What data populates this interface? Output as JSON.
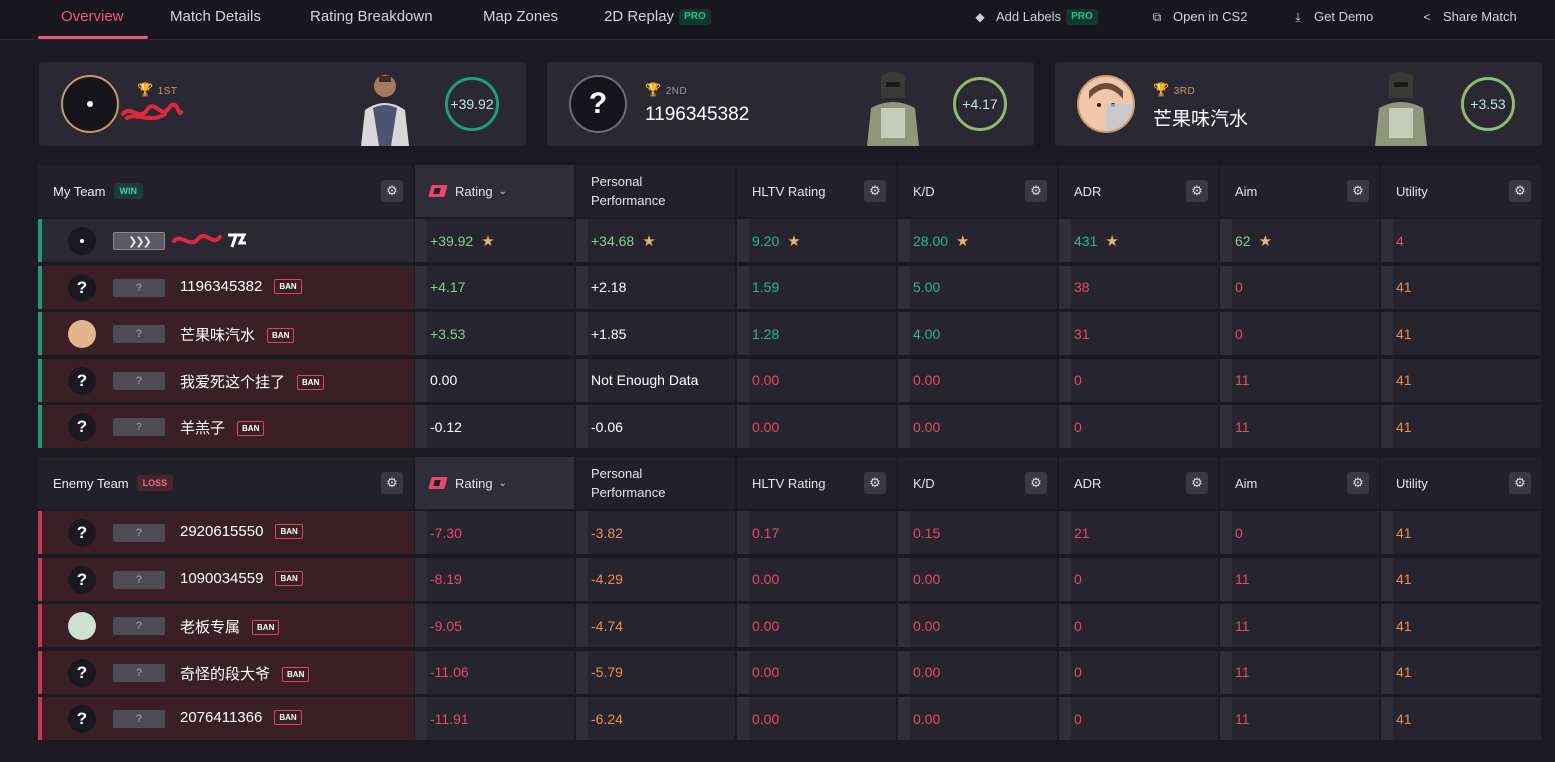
{
  "nav": {
    "tabs": [
      {
        "label": "Overview",
        "active": true
      },
      {
        "label": "Match Details"
      },
      {
        "label": "Rating Breakdown"
      },
      {
        "label": "Map Zones"
      },
      {
        "label": "2D Replay",
        "pro": "PRO"
      }
    ],
    "actions": [
      {
        "label": "Add Labels",
        "icon": "tag-icon",
        "pro": "PRO"
      },
      {
        "label": "Open in CS2",
        "icon": "external-link-icon"
      },
      {
        "label": "Get Demo",
        "icon": "download-icon"
      },
      {
        "label": "Share Match",
        "icon": "share-icon"
      }
    ]
  },
  "podium": [
    {
      "place": "1ST",
      "name": "",
      "rating": "+39.92"
    },
    {
      "place": "2ND",
      "name": "1196345382",
      "rating": "+4.17"
    },
    {
      "place": "3RD",
      "name": "芒果味汽水",
      "rating": "+3.53"
    }
  ],
  "my_team": {
    "label": "My Team",
    "result": "WIN",
    "headers": [
      "Rating",
      "Personal Performance",
      "HLTV Rating",
      "K/D",
      "ADR",
      "Aim",
      "Utility"
    ],
    "players": [
      {
        "name": "",
        "ban": "",
        "rating": "+39.92",
        "personal": "+34.68",
        "hltv": "9.20",
        "kd": "28.00",
        "adr": "431",
        "aim": "62",
        "utility": "4"
      },
      {
        "name": "1196345382",
        "ban": "BAN",
        "rating": "+4.17",
        "personal": "+2.18",
        "hltv": "1.59",
        "kd": "5.00",
        "adr": "38",
        "aim": "0",
        "utility": "41"
      },
      {
        "name": "芒果味汽水",
        "ban": "BAN",
        "rating": "+3.53",
        "personal": "+1.85",
        "hltv": "1.28",
        "kd": "4.00",
        "adr": "31",
        "aim": "0",
        "utility": "41"
      },
      {
        "name": "我爱死这个挂了",
        "ban": "BAN",
        "rating": "0.00",
        "personal": "Not Enough Data",
        "hltv": "0.00",
        "kd": "0.00",
        "adr": "0",
        "aim": "11",
        "utility": "41"
      },
      {
        "name": "羊羔子",
        "ban": "BAN",
        "rating": "-0.12",
        "personal": "-0.06",
        "hltv": "0.00",
        "kd": "0.00",
        "adr": "0",
        "aim": "11",
        "utility": "41"
      }
    ]
  },
  "enemy_team": {
    "label": "Enemy Team",
    "result": "LOSS",
    "headers": [
      "Rating",
      "Personal Performance",
      "HLTV Rating",
      "K/D",
      "ADR",
      "Aim",
      "Utility"
    ],
    "players": [
      {
        "name": "2920615550",
        "ban": "BAN",
        "rating": "-7.30",
        "personal": "-3.82",
        "hltv": "0.17",
        "kd": "0.15",
        "adr": "21",
        "aim": "0",
        "utility": "41"
      },
      {
        "name": "1090034559",
        "ban": "BAN",
        "rating": "-8.19",
        "personal": "-4.29",
        "hltv": "0.00",
        "kd": "0.00",
        "adr": "0",
        "aim": "11",
        "utility": "41"
      },
      {
        "name": "老板专属",
        "ban": "BAN",
        "rating": "-9.05",
        "personal": "-4.74",
        "hltv": "0.00",
        "kd": "0.00",
        "adr": "0",
        "aim": "11",
        "utility": "41"
      },
      {
        "name": "奇怪的段大爷",
        "ban": "BAN",
        "rating": "-11.06",
        "personal": "-5.79",
        "hltv": "0.00",
        "kd": "0.00",
        "adr": "0",
        "aim": "11",
        "utility": "41"
      },
      {
        "name": "2076411366",
        "ban": "BAN",
        "rating": "-11.91",
        "personal": "-6.24",
        "hltv": "0.00",
        "kd": "0.00",
        "adr": "0",
        "aim": "11",
        "utility": "41"
      }
    ]
  },
  "colors": {
    "accent": "#ef5a7a",
    "win": "#1f9d78",
    "loss": "#cc3653",
    "positive": "#7fd28a",
    "negative": "#e84a63"
  }
}
